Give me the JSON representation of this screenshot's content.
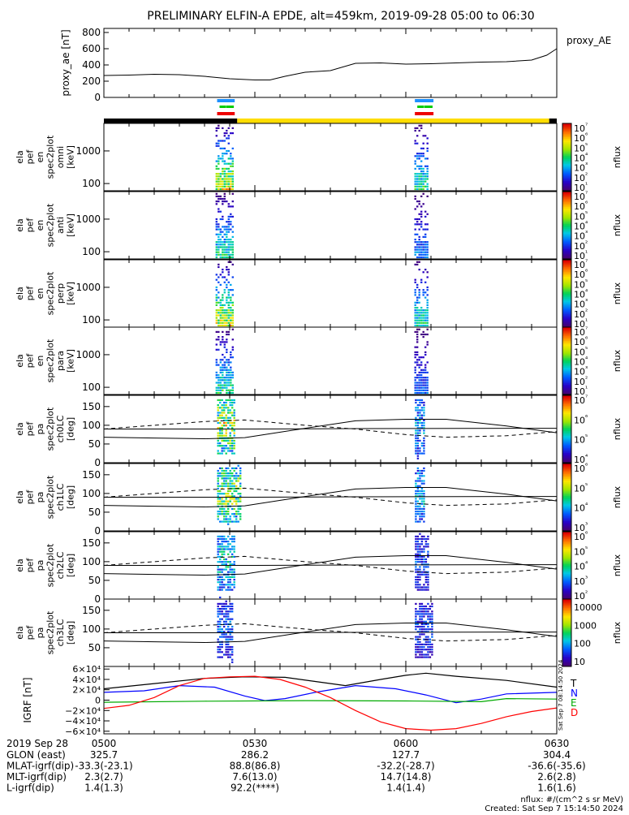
{
  "title": "PRELIMINARY ELFIN-A EPDE, alt=459km, 2019-09-28 05:00 to 06:30",
  "colors": {
    "blue": "#0000ff",
    "red": "#ff0000",
    "green": "#00aa00",
    "black": "#000000",
    "yellow": "#ffdd00",
    "bar_blue": "#1e90ff",
    "bar_green": "#00cc00",
    "bar_red": "#ee0000"
  },
  "chart_data": [
    {
      "type": "line",
      "id": "proxy_ae",
      "ylabel": "proxy_ae [nT]",
      "side_label": "proxy_AE",
      "ylim": [
        0,
        850
      ],
      "yticks": [
        0,
        200,
        400,
        600,
        800
      ],
      "x": [
        0,
        5,
        10,
        15,
        20,
        25,
        30,
        33,
        36,
        40,
        45,
        50,
        55,
        60,
        65,
        70,
        75,
        80,
        85,
        88,
        90
      ],
      "values": [
        270,
        275,
        285,
        280,
        260,
        230,
        215,
        215,
        260,
        310,
        330,
        420,
        425,
        410,
        415,
        425,
        435,
        440,
        460,
        520,
        600
      ]
    },
    {
      "type": "heatmap",
      "id": "omni",
      "ylabel_lines": [
        "ela",
        "pef",
        "en",
        "spec2plot",
        "omni",
        "[keV]"
      ],
      "yscale": "log",
      "ylim": [
        60,
        7000
      ],
      "yticks": [
        100,
        1000
      ],
      "ytick_labels": [
        "100",
        "1000"
      ],
      "cbar_min_exp": 1,
      "cbar_max_exp": 7,
      "cbar_label": "nflux",
      "bursts": [
        {
          "t0": 22.2,
          "t1": 25.8,
          "level": 0.82
        },
        {
          "t0": 61.7,
          "t1": 64.7,
          "level": 0.55
        }
      ]
    },
    {
      "type": "heatmap",
      "id": "anti",
      "ylabel_lines": [
        "ela",
        "pef",
        "en",
        "spec2plot",
        "anti",
        "[keV]"
      ],
      "yscale": "log",
      "ylim": [
        60,
        7000
      ],
      "yticks": [
        100,
        1000
      ],
      "ytick_labels": [
        "100",
        "1000"
      ],
      "cbar_min_exp": 1,
      "cbar_max_exp": 7,
      "cbar_label": "nflux",
      "bursts": [
        {
          "t0": 22.2,
          "t1": 25.8,
          "level": 0.55
        },
        {
          "t0": 61.7,
          "t1": 64.7,
          "level": 0.35
        }
      ]
    },
    {
      "type": "heatmap",
      "id": "perp",
      "ylabel_lines": [
        "ela",
        "pef",
        "en",
        "spec2plot",
        "perp",
        "[keV]"
      ],
      "yscale": "log",
      "ylim": [
        60,
        7000
      ],
      "yticks": [
        100,
        1000
      ],
      "ytick_labels": [
        "100",
        "1000"
      ],
      "cbar_min_exp": 1,
      "cbar_max_exp": 7,
      "cbar_label": "nflux",
      "bursts": [
        {
          "t0": 22.2,
          "t1": 25.8,
          "level": 0.82
        },
        {
          "t0": 61.7,
          "t1": 64.7,
          "level": 0.55
        }
      ]
    },
    {
      "type": "heatmap",
      "id": "para",
      "ylabel_lines": [
        "ela",
        "pef",
        "en",
        "spec2plot",
        "para",
        "[keV]"
      ],
      "yscale": "log",
      "ylim": [
        60,
        7000
      ],
      "yticks": [
        100,
        1000
      ],
      "ytick_labels": [
        "100",
        "1000"
      ],
      "cbar_min_exp": 1,
      "cbar_max_exp": 7,
      "cbar_label": "nflux",
      "bursts": [
        {
          "t0": 22.2,
          "t1": 25.8,
          "level": 0.55
        },
        {
          "t0": 61.7,
          "t1": 64.7,
          "level": 0.3
        }
      ]
    },
    {
      "type": "heatmap",
      "id": "ch0LC",
      "ylabel_lines": [
        "ela",
        "pef",
        "pa",
        "spec2plot",
        "ch0LC",
        "[deg]"
      ],
      "yscale": "linear",
      "ylim": [
        0,
        180
      ],
      "yticks": [
        0,
        50,
        100,
        150
      ],
      "ytick_labels": [
        "0",
        "50",
        "100",
        "150"
      ],
      "cbar_min_exp": 4,
      "cbar_max_exp": 7,
      "cbar_label": "nflux",
      "bursts": [
        {
          "t0": 22.5,
          "t1": 26.0,
          "level": 0.85
        },
        {
          "t0": 61.8,
          "t1": 63.8,
          "level": 0.45
        }
      ]
    },
    {
      "type": "heatmap",
      "id": "ch1LC",
      "ylabel_lines": [
        "ela",
        "pef",
        "pa",
        "spec2plot",
        "ch1LC",
        "[deg]"
      ],
      "yscale": "linear",
      "ylim": [
        0,
        180
      ],
      "yticks": [
        0,
        50,
        100,
        150
      ],
      "ytick_labels": [
        "0",
        "50",
        "100",
        "150"
      ],
      "cbar_min_exp": 3,
      "cbar_max_exp": 6,
      "cbar_label": "nflux",
      "bursts": [
        {
          "t0": 22.5,
          "t1": 27.2,
          "level": 0.8
        },
        {
          "t0": 61.8,
          "t1": 63.8,
          "level": 0.5
        }
      ]
    },
    {
      "type": "heatmap",
      "id": "ch2LC",
      "ylabel_lines": [
        "ela",
        "pef",
        "pa",
        "spec2plot",
        "ch2LC",
        "[deg]"
      ],
      "yscale": "linear",
      "ylim": [
        0,
        180
      ],
      "yticks": [
        0,
        50,
        100,
        150
      ],
      "ytick_labels": [
        "0",
        "50",
        "100",
        "150"
      ],
      "cbar_min_exp": 2,
      "cbar_max_exp": 6,
      "cbar_label": "nflux",
      "bursts": [
        {
          "t0": 22.5,
          "t1": 26.0,
          "level": 0.55
        },
        {
          "t0": 61.8,
          "t1": 64.5,
          "level": 0.3
        }
      ]
    },
    {
      "type": "heatmap",
      "id": "ch3LC",
      "ylabel_lines": [
        "ela",
        "pef",
        "pa",
        "spec2plot",
        "ch3LC",
        "[deg]"
      ],
      "yscale": "linear",
      "ylim": [
        0,
        180
      ],
      "yticks": [
        0,
        50,
        100,
        150
      ],
      "ytick_labels": [
        "50",
        "100",
        "150"
      ],
      "cbar_labels": [
        "10",
        "100",
        "1000",
        "10000"
      ],
      "cbar_label": "nflux",
      "bursts": [
        {
          "t0": 22.5,
          "t1": 25.8,
          "level": 0.35
        },
        {
          "t0": 61.8,
          "t1": 65.5,
          "level": 0.3
        }
      ]
    },
    {
      "type": "line",
      "id": "igrf",
      "ylabel": "IGRF [nT]",
      "ylim": [
        -65000,
        65000
      ],
      "yticks": [
        -60000,
        -40000,
        -20000,
        0,
        20000,
        40000,
        60000
      ],
      "ytick_labels": [
        "−6×10⁴",
        "−4×10⁴",
        "−2×10⁴",
        "0",
        "2×10⁴",
        "4×10⁴",
        "6×10⁴"
      ],
      "legend": [
        "T",
        "N",
        "E",
        "D"
      ],
      "stamp": "Sat Sep  7 08:14:50 2024",
      "series": [
        {
          "name": "T",
          "color": "#000000",
          "x": [
            0,
            10,
            20,
            28,
            36,
            42,
            48,
            55,
            60,
            64,
            70,
            80,
            90
          ],
          "values": [
            22000,
            32000,
            42000,
            45000,
            44000,
            36000,
            28000,
            40000,
            48000,
            52000,
            46000,
            38000,
            25000
          ]
        },
        {
          "name": "N",
          "color": "#0000ff",
          "x": [
            0,
            8,
            15,
            22,
            28,
            32,
            36,
            42,
            50,
            58,
            64,
            70,
            75,
            80,
            90
          ],
          "values": [
            15000,
            18000,
            28000,
            25000,
            8000,
            -1000,
            3000,
            15000,
            28000,
            22000,
            10000,
            -5000,
            2000,
            12000,
            15000
          ]
        },
        {
          "name": "E",
          "color": "#00aa00",
          "x": [
            0,
            20,
            40,
            60,
            75,
            80,
            90
          ],
          "values": [
            -4000,
            -2000,
            -1000,
            -1500,
            -3000,
            3000,
            2000
          ]
        },
        {
          "name": "D",
          "color": "#ff0000",
          "x": [
            0,
            5,
            10,
            15,
            20,
            25,
            30,
            35,
            40,
            45,
            50,
            55,
            60,
            65,
            70,
            75,
            80,
            85,
            90
          ],
          "values": [
            -16000,
            -10000,
            5000,
            28000,
            42000,
            45000,
            46000,
            40000,
            25000,
            5000,
            -20000,
            -42000,
            -55000,
            -58000,
            -55000,
            -45000,
            -32000,
            -22000,
            -15000
          ]
        }
      ]
    }
  ],
  "xaxis": {
    "tick_labels": [
      "0500",
      "0530",
      "0600",
      "0630"
    ],
    "tick_minutes": [
      0,
      30,
      60,
      90
    ],
    "date_label": "2019 Sep 28"
  },
  "orbit_rows": [
    {
      "label": "GLON (east)",
      "values": [
        "325.7",
        "286.2",
        "127.7",
        "304.4"
      ]
    },
    {
      "label": "MLAT-igrf(dip)",
      "values": [
        "-33.3(-23.1)",
        "88.8(86.8)",
        "-32.2(-28.7)",
        "-36.6(-35.6)"
      ]
    },
    {
      "label": "MLT-igrf(dip)",
      "values": [
        "2.3(2.7)",
        "7.6(13.0)",
        "14.7(14.8)",
        "2.6(2.8)"
      ]
    },
    {
      "label": "L-igrf(dip)",
      "values": [
        "1.4(1.3)",
        "92.2(****)",
        "1.4(1.4)",
        "1.6(1.6)"
      ]
    }
  ],
  "footer": {
    "units": "nflux: #/(cm^2 s sr MeV)",
    "created": "Created: Sat Sep  7 15:14:50 2024"
  },
  "status_bar": {
    "segments": [
      {
        "t0": 0,
        "t1": 26.5,
        "color": "#000000"
      },
      {
        "t0": 26.5,
        "t1": 88.5,
        "color": "#ffdd00"
      },
      {
        "t0": 88.5,
        "t1": 90,
        "color": "#000000"
      }
    ],
    "markers": [
      {
        "t0": 22.5,
        "t1": 26.0
      },
      {
        "t0": 61.8,
        "t1": 65.5
      }
    ]
  }
}
